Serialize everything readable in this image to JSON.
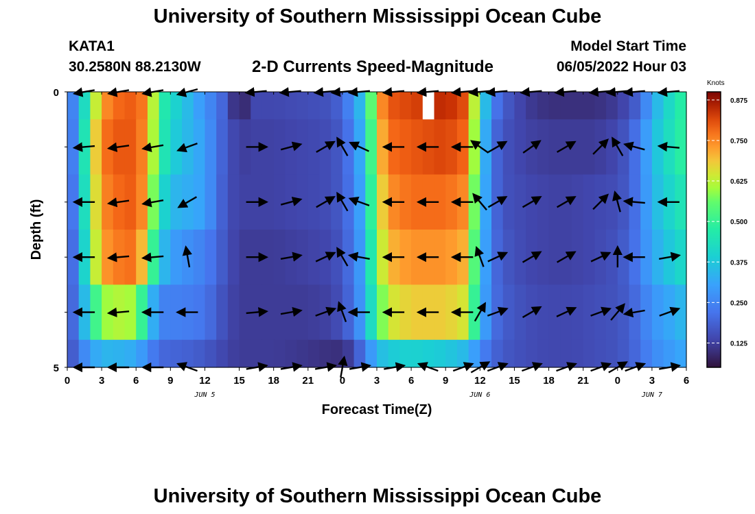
{
  "header": {
    "title": "University of Southern Mississippi Ocean Cube",
    "station": "KATA1",
    "coords": "30.2580N  88.2130W",
    "subtitle": "2-D Currents Speed-Magnitude",
    "model_start_label": "Model Start Time",
    "model_start_value": "06/05/2022 Hour 03"
  },
  "footer": {
    "title": "University of Southern Mississippi Ocean Cube"
  },
  "chart_data": {
    "type": "heatmap",
    "title": "2-D Currents Speed-Magnitude",
    "xlabel": "Forecast Time(Z)",
    "ylabel": "Depth (ft)",
    "x_start_hour": 0,
    "x_end_hour": 54,
    "x_tick_labels": [
      "0",
      "3",
      "6",
      "9",
      "12",
      "15",
      "18",
      "21",
      "0",
      "3",
      "6",
      "9",
      "12",
      "15",
      "18",
      "21",
      "0",
      "3",
      "6"
    ],
    "day_labels": [
      {
        "label": "JUN 5",
        "hour": 12
      },
      {
        "label": "JUN 6",
        "hour": 36
      },
      {
        "label": "JUN 7",
        "hour": 51
      }
    ],
    "y_tick_labels": [
      {
        "label": "0",
        "depth": 0
      },
      {
        "label": "5",
        "depth": 5
      }
    ],
    "ylim": [
      0,
      5
    ],
    "depth_rows": [
      0,
      1,
      2,
      3,
      4,
      5
    ],
    "colorbar": {
      "label": "Knots",
      "ticks": [
        "0.875",
        "0.750",
        "0.625",
        "0.500",
        "0.375",
        "0.250",
        "0.125"
      ],
      "tick_values": [
        0.875,
        0.75,
        0.625,
        0.5,
        0.375,
        0.25,
        0.125
      ],
      "range": [
        0.05,
        0.9
      ]
    },
    "speed_keyframes": {
      "hours": [
        0,
        1,
        2,
        3,
        4,
        6,
        7,
        8,
        9,
        10,
        11,
        12,
        13,
        14,
        15,
        16,
        18,
        21,
        23,
        24,
        25,
        26,
        27,
        28,
        30,
        33,
        35,
        36,
        37,
        38,
        40,
        42,
        44,
        46,
        48,
        49,
        50,
        51,
        52,
        53,
        54
      ],
      "rows": [
        [
          0.2,
          0.3,
          0.55,
          0.72,
          0.78,
          0.8,
          0.74,
          0.5,
          0.42,
          0.38,
          0.32,
          0.28,
          0.22,
          0.17,
          0.05,
          0.14,
          0.14,
          0.15,
          0.16,
          0.2,
          0.28,
          0.4,
          0.7,
          0.8,
          0.82,
          0.85,
          0.8,
          0.45,
          0.25,
          0.18,
          0.12,
          0.1,
          0.1,
          0.1,
          0.12,
          0.15,
          0.2,
          0.32,
          0.38,
          0.45,
          0.5
        ],
        [
          0.18,
          0.3,
          0.6,
          0.76,
          0.8,
          0.8,
          0.72,
          0.5,
          0.4,
          0.36,
          0.33,
          0.3,
          0.22,
          0.16,
          0.12,
          0.13,
          0.13,
          0.14,
          0.15,
          0.18,
          0.25,
          0.38,
          0.65,
          0.78,
          0.8,
          0.82,
          0.78,
          0.42,
          0.22,
          0.16,
          0.13,
          0.12,
          0.12,
          0.12,
          0.14,
          0.18,
          0.24,
          0.35,
          0.4,
          0.46,
          0.5
        ],
        [
          0.17,
          0.28,
          0.58,
          0.74,
          0.78,
          0.8,
          0.7,
          0.45,
          0.35,
          0.33,
          0.32,
          0.3,
          0.22,
          0.15,
          0.13,
          0.13,
          0.13,
          0.14,
          0.15,
          0.18,
          0.24,
          0.36,
          0.62,
          0.74,
          0.78,
          0.78,
          0.74,
          0.4,
          0.22,
          0.16,
          0.14,
          0.13,
          0.13,
          0.14,
          0.15,
          0.18,
          0.24,
          0.34,
          0.38,
          0.43,
          0.46
        ],
        [
          0.16,
          0.26,
          0.55,
          0.72,
          0.76,
          0.78,
          0.62,
          0.38,
          0.3,
          0.28,
          0.26,
          0.24,
          0.2,
          0.15,
          0.12,
          0.12,
          0.12,
          0.13,
          0.14,
          0.17,
          0.23,
          0.34,
          0.58,
          0.7,
          0.74,
          0.74,
          0.7,
          0.38,
          0.22,
          0.17,
          0.14,
          0.13,
          0.13,
          0.14,
          0.16,
          0.19,
          0.24,
          0.32,
          0.35,
          0.4,
          0.42
        ],
        [
          0.15,
          0.25,
          0.45,
          0.58,
          0.62,
          0.6,
          0.4,
          0.25,
          0.24,
          0.24,
          0.23,
          0.22,
          0.18,
          0.14,
          0.12,
          0.12,
          0.12,
          0.12,
          0.13,
          0.16,
          0.22,
          0.33,
          0.52,
          0.64,
          0.68,
          0.68,
          0.64,
          0.36,
          0.22,
          0.18,
          0.15,
          0.14,
          0.14,
          0.15,
          0.16,
          0.18,
          0.22,
          0.28,
          0.3,
          0.33,
          0.35
        ],
        [
          0.14,
          0.22,
          0.3,
          0.34,
          0.34,
          0.32,
          0.26,
          0.2,
          0.19,
          0.19,
          0.18,
          0.17,
          0.15,
          0.13,
          0.12,
          0.12,
          0.12,
          0.11,
          0.1,
          0.1,
          0.14,
          0.24,
          0.34,
          0.38,
          0.4,
          0.38,
          0.34,
          0.26,
          0.2,
          0.17,
          0.15,
          0.14,
          0.14,
          0.15,
          0.16,
          0.18,
          0.21,
          0.26,
          0.28,
          0.3,
          0.32
        ]
      ]
    },
    "missing_cells": [
      {
        "hour": 31,
        "depth": 0
      }
    ],
    "vector_hours": [
      1.5,
      4.5,
      7.5,
      10.5,
      16.5,
      19.5,
      22.5,
      24.0,
      25.5,
      28.5,
      31.5,
      34.5,
      36.0,
      37.5,
      40.5,
      43.5,
      46.5,
      48.0,
      49.5,
      52.5
    ],
    "vector_angles_deg": [
      [
        190,
        190,
        190,
        195,
        185,
        185,
        185,
        185,
        185,
        185,
        185,
        185,
        185,
        185,
        185,
        185,
        185,
        185,
        185,
        185
      ],
      [
        185,
        188,
        190,
        200,
        0,
        15,
        30,
        120,
        155,
        180,
        180,
        180,
        145,
        30,
        35,
        30,
        45,
        120,
        165,
        175
      ],
      [
        180,
        188,
        190,
        210,
        0,
        15,
        30,
        120,
        160,
        180,
        180,
        180,
        130,
        30,
        30,
        30,
        45,
        105,
        175,
        180
      ],
      [
        180,
        185,
        185,
        100,
        0,
        10,
        25,
        120,
        170,
        180,
        180,
        180,
        110,
        25,
        30,
        30,
        25,
        90,
        180,
        10
      ],
      [
        180,
        185,
        180,
        180,
        5,
        10,
        20,
        110,
        180,
        180,
        180,
        180,
        60,
        20,
        30,
        25,
        20,
        50,
        190,
        20
      ],
      [
        180,
        180,
        180,
        160,
        10,
        10,
        10,
        80,
        10,
        10,
        160,
        20,
        30,
        20,
        20,
        20,
        20,
        30,
        20,
        10
      ]
    ]
  }
}
